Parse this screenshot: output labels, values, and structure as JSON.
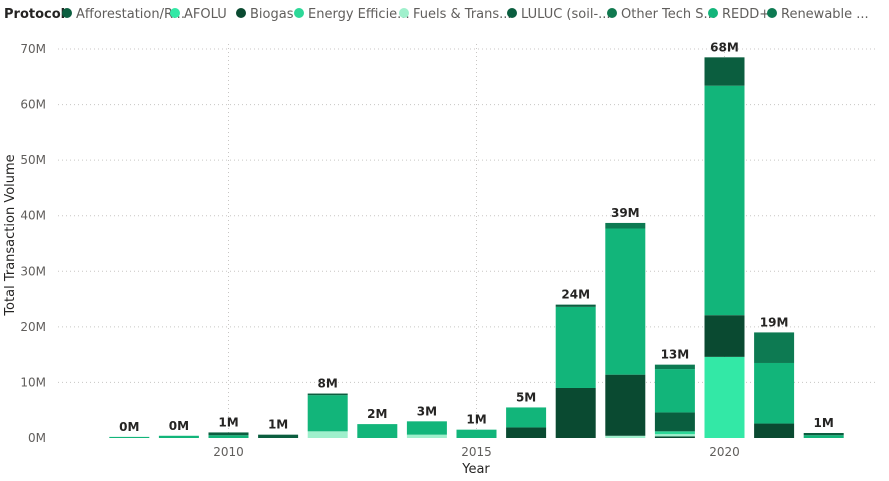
{
  "chart_data": {
    "type": "bar",
    "stacked": true,
    "legend": {
      "title": "Protocol",
      "placement": "top-left",
      "items": [
        {
          "name": "Afforestation/R...",
          "color": "#0b5e3f"
        },
        {
          "name": "AFOLU",
          "color": "#33e8a6"
        },
        {
          "name": "Biogas",
          "color": "#0a4a31"
        },
        {
          "name": "Energy Efficie...",
          "color": "#2dd898"
        },
        {
          "name": "Fuels & Trans...",
          "color": "#9ff0cc"
        },
        {
          "name": "LULUC (soil-...",
          "color": "#0a5e3f"
        },
        {
          "name": "Other Tech S...",
          "color": "#10794f"
        },
        {
          "name": "REDD+",
          "color": "#12b57a"
        },
        {
          "name": "Renewable ...",
          "color": "#0d7a52"
        }
      ]
    },
    "xlabel": "Year",
    "ylabel": "Total Transaction Volume",
    "x_tick_labels": [
      {
        "label": "2010",
        "at": 2010
      },
      {
        "label": "2015",
        "at": 2015
      },
      {
        "label": "2020",
        "at": 2020
      }
    ],
    "y_ticks": [
      {
        "label": "0M",
        "value": 0
      },
      {
        "label": "10M",
        "value": 10
      },
      {
        "label": "20M",
        "value": 20
      },
      {
        "label": "30M",
        "value": 30
      },
      {
        "label": "40M",
        "value": 40
      },
      {
        "label": "50M",
        "value": 50
      },
      {
        "label": "60M",
        "value": 60
      },
      {
        "label": "70M",
        "value": 70
      }
    ],
    "ylim": [
      0,
      70
    ],
    "grid": true,
    "bars": [
      {
        "year": 2008,
        "label": "0M",
        "segments": [
          {
            "series": "REDD+",
            "value": 0.2
          }
        ]
      },
      {
        "year": 2009,
        "label": "0M",
        "segments": [
          {
            "series": "REDD+",
            "value": 0.4
          }
        ]
      },
      {
        "year": 2010,
        "label": "1M",
        "segments": [
          {
            "series": "REDD+",
            "value": 0.5
          },
          {
            "series": "Afforestation/R...",
            "value": 0.5
          }
        ]
      },
      {
        "year": 2011,
        "label": "1M",
        "segments": [
          {
            "series": "Afforestation/R...",
            "value": 0.6
          }
        ]
      },
      {
        "year": 2012,
        "label": "8M",
        "segments": [
          {
            "series": "Fuels & Trans...",
            "value": 1.2
          },
          {
            "series": "REDD+",
            "value": 6.5
          },
          {
            "series": "Afforestation/R...",
            "value": 0.3
          }
        ]
      },
      {
        "year": 2013,
        "label": "2M",
        "segments": [
          {
            "series": "REDD+",
            "value": 2.5
          }
        ]
      },
      {
        "year": 2014,
        "label": "3M",
        "segments": [
          {
            "series": "Fuels & Trans...",
            "value": 0.6
          },
          {
            "series": "REDD+",
            "value": 2.4
          }
        ]
      },
      {
        "year": 2015,
        "label": "1M",
        "segments": [
          {
            "series": "REDD+",
            "value": 1.5
          }
        ]
      },
      {
        "year": 2016,
        "label": "5M",
        "segments": [
          {
            "series": "Biogas",
            "value": 1.9
          },
          {
            "series": "REDD+",
            "value": 3.6
          }
        ]
      },
      {
        "year": 2017,
        "label": "24M",
        "segments": [
          {
            "series": "Biogas",
            "value": 9.0
          },
          {
            "series": "REDD+",
            "value": 14.6
          },
          {
            "series": "Afforestation/R...",
            "value": 0.4
          }
        ]
      },
      {
        "year": 2018,
        "label": "39M",
        "segments": [
          {
            "series": "Fuels & Trans...",
            "value": 0.4
          },
          {
            "series": "Biogas",
            "value": 11.0
          },
          {
            "series": "REDD+",
            "value": 26.3
          },
          {
            "series": "Renewable ...",
            "value": 1.0
          }
        ]
      },
      {
        "year": 2019,
        "label": "13M",
        "segments": [
          {
            "series": "Biogas",
            "value": 0.3
          },
          {
            "series": "Fuels & Trans...",
            "value": 0.4
          },
          {
            "series": "Energy Efficie...",
            "value": 0.5
          },
          {
            "series": "LULUC (soil-...",
            "value": 3.4
          },
          {
            "series": "REDD+",
            "value": 7.8
          },
          {
            "series": "Renewable ...",
            "value": 0.8
          }
        ]
      },
      {
        "year": 2020,
        "label": "68M",
        "segments": [
          {
            "series": "AFOLU",
            "value": 14.6
          },
          {
            "series": "Biogas",
            "value": 7.5
          },
          {
            "series": "REDD+",
            "value": 41.3
          },
          {
            "series": "Afforestation/R...",
            "value": 5.1
          }
        ]
      },
      {
        "year": 2021,
        "label": "19M",
        "segments": [
          {
            "series": "Biogas",
            "value": 2.6
          },
          {
            "series": "REDD+",
            "value": 10.9
          },
          {
            "series": "Renewable ...",
            "value": 5.5
          }
        ]
      },
      {
        "year": 2022,
        "label": "1M",
        "segments": [
          {
            "series": "REDD+",
            "value": 0.5
          },
          {
            "series": "Afforestation/R...",
            "value": 0.4
          }
        ]
      }
    ]
  }
}
